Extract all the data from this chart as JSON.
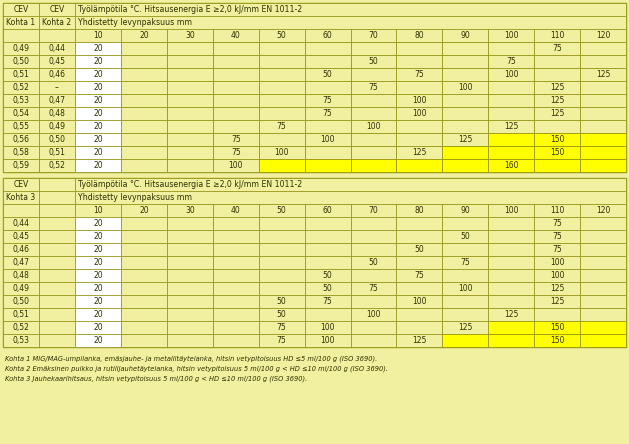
{
  "bg_color": "#f0f0a0",
  "yellow_bright": "#ffff00",
  "yellow_med": "#f0f080",
  "white_cell": "#ffffff",
  "border_color": "#909010",
  "text_color": "#303000",
  "title1": "Työlämpötila °C. Hitsausenergia E ≥2,0 kJ/mm EN 1011-2",
  "subtitle": "Yhdistetty levynpaksuus mm",
  "col_header": [
    "10",
    "20",
    "30",
    "40",
    "50",
    "60",
    "70",
    "80",
    "90",
    "100",
    "110",
    "120"
  ],
  "footnotes": [
    "Kohta 1 MIG/MAG-umpilanka, emäsjauhe- ja metallitäytelanka, hitsin vetypitoisuus HD ≤5 ml/100 g (ISO 3690).",
    "Kohta 2 Emäksinen puikko ja rutilijauhetäytelanka, hitsin vetypitoisuus 5 ml/100 g < HD ≤10 ml/100 g (ISO 3690).",
    "Kohta 3 Jauhekaarihitsaus, hitsin vetypitoisuus 5 ml/100 g < HD ≤10 ml/100 g (ISO 3690)."
  ],
  "table1_rows": [
    {
      "cev1": "0,49",
      "cev2": "0,44",
      "vals": [
        20,
        -1,
        -1,
        -1,
        -1,
        -1,
        -1,
        -1,
        -1,
        -1,
        75,
        -1
      ]
    },
    {
      "cev1": "0,50",
      "cev2": "0,45",
      "vals": [
        20,
        -1,
        -1,
        -1,
        -1,
        -1,
        50,
        -1,
        -1,
        75,
        -1,
        -1
      ]
    },
    {
      "cev1": "0,51",
      "cev2": "0,46",
      "vals": [
        20,
        -1,
        -1,
        -1,
        -1,
        50,
        -1,
        75,
        -1,
        100,
        -1,
        125
      ]
    },
    {
      "cev1": "0,52",
      "cev2": "–",
      "vals": [
        20,
        -1,
        -1,
        -1,
        -1,
        -1,
        75,
        -1,
        100,
        -1,
        125,
        -1
      ]
    },
    {
      "cev1": "0,53",
      "cev2": "0,47",
      "vals": [
        20,
        -1,
        -1,
        -1,
        -1,
        75,
        -1,
        100,
        -1,
        -1,
        125,
        -1
      ]
    },
    {
      "cev1": "0,54",
      "cev2": "0,48",
      "vals": [
        20,
        -1,
        -1,
        -1,
        -1,
        75,
        -1,
        100,
        -1,
        -1,
        125,
        -1
      ]
    },
    {
      "cev1": "0,55",
      "cev2": "0,49",
      "vals": [
        20,
        -1,
        -1,
        -1,
        75,
        -1,
        100,
        -1,
        -1,
        125,
        -1,
        -1
      ]
    },
    {
      "cev1": "0,56",
      "cev2": "0,50",
      "vals": [
        20,
        -1,
        -1,
        75,
        -1,
        100,
        -1,
        -1,
        125,
        -1,
        150,
        -1
      ]
    },
    {
      "cev1": "0,58",
      "cev2": "0,51",
      "vals": [
        20,
        -1,
        -1,
        75,
        100,
        -1,
        -1,
        125,
        -1,
        -1,
        150,
        -1
      ]
    },
    {
      "cev1": "0,59",
      "cev2": "0,52",
      "vals": [
        20,
        -1,
        -1,
        100,
        -1,
        -1,
        -1,
        -1,
        -1,
        160,
        -1,
        -1
      ]
    }
  ],
  "table2_rows": [
    {
      "cev1": "0,44",
      "vals": [
        20,
        -1,
        -1,
        -1,
        -1,
        -1,
        -1,
        -1,
        -1,
        -1,
        75,
        -1
      ]
    },
    {
      "cev1": "0,45",
      "vals": [
        20,
        -1,
        -1,
        -1,
        -1,
        -1,
        -1,
        -1,
        50,
        -1,
        75,
        -1
      ]
    },
    {
      "cev1": "0,46",
      "vals": [
        20,
        -1,
        -1,
        -1,
        -1,
        -1,
        -1,
        50,
        -1,
        -1,
        75,
        -1
      ]
    },
    {
      "cev1": "0,47",
      "vals": [
        20,
        -1,
        -1,
        -1,
        -1,
        -1,
        50,
        -1,
        75,
        -1,
        100,
        -1
      ]
    },
    {
      "cev1": "0,48",
      "vals": [
        20,
        -1,
        -1,
        -1,
        -1,
        50,
        -1,
        75,
        -1,
        -1,
        100,
        -1
      ]
    },
    {
      "cev1": "0,49",
      "vals": [
        20,
        -1,
        -1,
        -1,
        -1,
        50,
        75,
        -1,
        100,
        -1,
        125,
        -1
      ]
    },
    {
      "cev1": "0,50",
      "vals": [
        20,
        -1,
        -1,
        -1,
        50,
        75,
        -1,
        100,
        -1,
        -1,
        125,
        -1
      ]
    },
    {
      "cev1": "0,51",
      "vals": [
        20,
        -1,
        -1,
        -1,
        50,
        -1,
        100,
        -1,
        -1,
        125,
        -1,
        -1
      ]
    },
    {
      "cev1": "0,52",
      "vals": [
        20,
        -1,
        -1,
        -1,
        75,
        100,
        -1,
        -1,
        125,
        -1,
        150,
        -1
      ]
    },
    {
      "cev1": "0,53",
      "vals": [
        20,
        -1,
        -1,
        -1,
        75,
        100,
        -1,
        125,
        -1,
        -1,
        150,
        -1
      ]
    }
  ]
}
